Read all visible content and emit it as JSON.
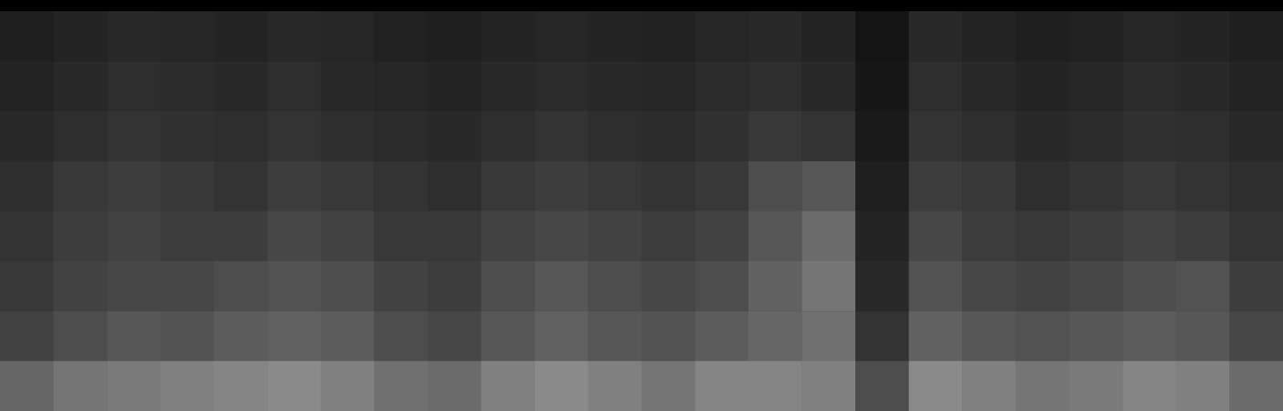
{
  "chart_data": {
    "type": "heatmap",
    "tick_labels": false,
    "color": "#ffffff",
    "color_range": [
      0,
      100
    ],
    "cells": [
      [
        12,
        14,
        16,
        15,
        14,
        16,
        15,
        13,
        12,
        14,
        15,
        14,
        13,
        15,
        16,
        14,
        8,
        16,
        14,
        12,
        13,
        15,
        14,
        12
      ],
      [
        14,
        16,
        18,
        17,
        16,
        18,
        16,
        15,
        14,
        16,
        17,
        16,
        15,
        17,
        18,
        16,
        9,
        18,
        16,
        14,
        15,
        17,
        16,
        14
      ],
      [
        16,
        18,
        20,
        19,
        18,
        20,
        18,
        17,
        16,
        18,
        20,
        18,
        17,
        19,
        22,
        20,
        10,
        20,
        18,
        16,
        17,
        19,
        18,
        16
      ],
      [
        18,
        22,
        24,
        22,
        20,
        24,
        22,
        20,
        18,
        22,
        24,
        22,
        20,
        22,
        30,
        34,
        12,
        24,
        22,
        18,
        20,
        22,
        20,
        18
      ],
      [
        20,
        24,
        26,
        24,
        24,
        28,
        26,
        22,
        22,
        26,
        28,
        26,
        24,
        26,
        34,
        42,
        14,
        28,
        24,
        22,
        24,
        26,
        24,
        20
      ],
      [
        22,
        26,
        28,
        28,
        30,
        32,
        30,
        26,
        24,
        30,
        34,
        30,
        28,
        30,
        38,
        46,
        16,
        32,
        28,
        26,
        28,
        30,
        32,
        24
      ],
      [
        26,
        30,
        34,
        32,
        36,
        38,
        36,
        30,
        28,
        34,
        38,
        34,
        32,
        36,
        40,
        44,
        20,
        38,
        34,
        32,
        34,
        36,
        34,
        28
      ],
      [
        40,
        46,
        48,
        50,
        52,
        54,
        50,
        44,
        42,
        50,
        54,
        50,
        46,
        52,
        52,
        50,
        30,
        54,
        50,
        46,
        48,
        52,
        50,
        42
      ]
    ]
  }
}
